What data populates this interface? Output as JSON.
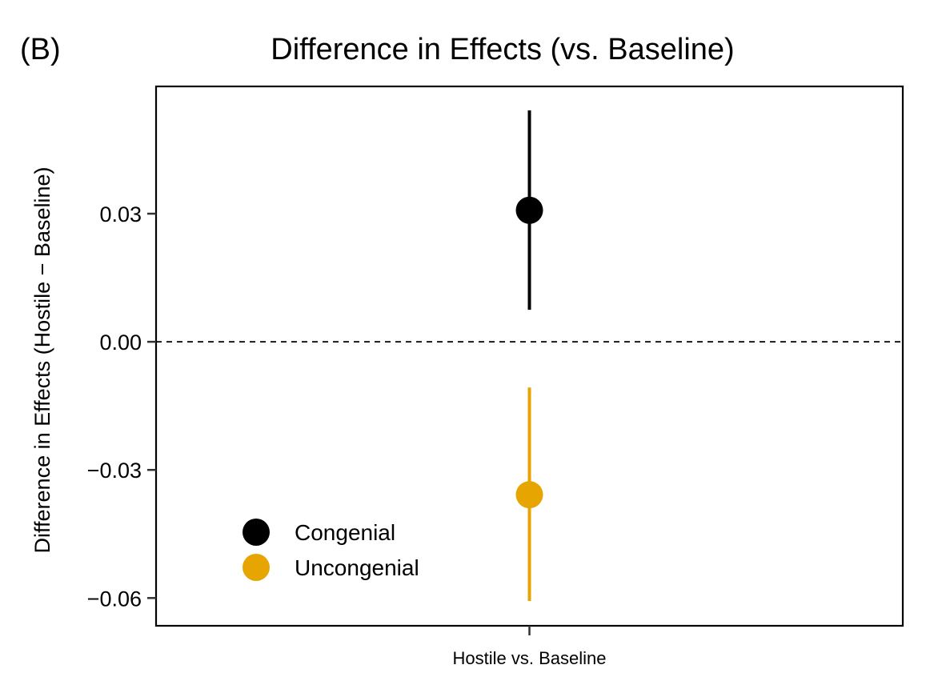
{
  "chart_data": {
    "type": "scatter",
    "panel_label": "(B)",
    "title": "Difference in Effects (vs. Baseline)",
    "xlabel": "",
    "ylabel": "Difference in Effects (Hostile − Baseline)",
    "categories": [
      "Hostile vs. Baseline"
    ],
    "ylim": [
      -0.0665,
      0.0598
    ],
    "yticks": [
      0.03,
      0.0,
      -0.03,
      -0.06
    ],
    "ytick_labels": [
      "0.03",
      "0.00",
      "−0.03",
      "−0.06"
    ],
    "reference_line": 0.0,
    "grid": false,
    "legend_position": "bottom-left",
    "series": [
      {
        "name": "Congenial",
        "color": "#000000",
        "values": [
          0.0308
        ],
        "ci_low": [
          0.0075
        ],
        "ci_high": [
          0.0542
        ]
      },
      {
        "name": "Uncongenial",
        "color": "#E6A500",
        "values": [
          -0.0358
        ],
        "ci_low": [
          -0.0607
        ],
        "ci_high": [
          -0.0107
        ]
      }
    ]
  }
}
